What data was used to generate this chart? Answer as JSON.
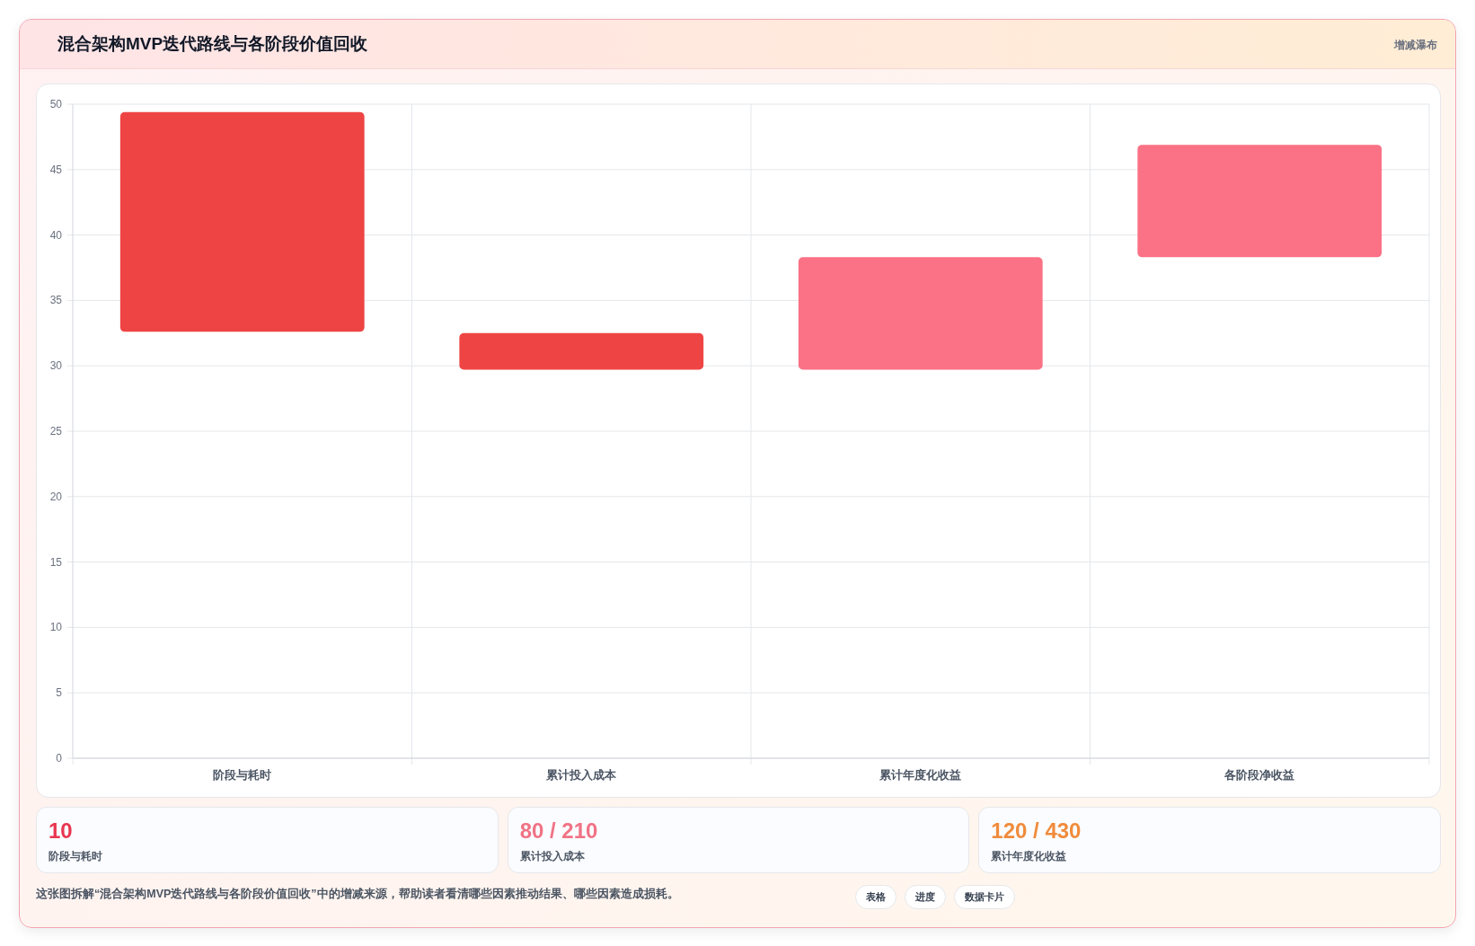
{
  "chart_data": [
    {
      "type": "bar",
      "title": "混合架构MVP迭代路线与各阶段价值回收",
      "subtitle": "增减瀑布",
      "categories": [
        "阶段与耗时",
        "累计投入成本",
        "累计年度化收益",
        "各阶段净收益"
      ],
      "values": [
        16.8,
        2.8,
        8.6,
        8.6
      ],
      "base": [
        32.6,
        29.7,
        29.7,
        38.3
      ],
      "colors": [
        "#ef4444",
        "#ef4444",
        "#fb7185",
        "#fb7185"
      ],
      "ylim": [
        0,
        50
      ],
      "yticks": [
        0,
        5,
        10,
        15,
        20,
        25,
        30,
        35,
        40,
        45,
        50
      ],
      "grid": true,
      "annotations": [
        "这张图拆解“混合架构MVP迭代路线与各阶段价值回收”中的增减来源，帮助读者看清哪些因素推动结果、哪些因素造成损耗。",
        "表格",
        "进度",
        "数据卡片"
      ]
    },
    {
      "type": "other",
      "annotations": [
        "10",
        "阶段与耗时",
        "80 / 210",
        "累计投入成本",
        "120 / 430",
        "累计年度化收益"
      ],
      "colors": [
        "#e8364f",
        "#f07385",
        "#f08c3c"
      ]
    }
  ]
}
